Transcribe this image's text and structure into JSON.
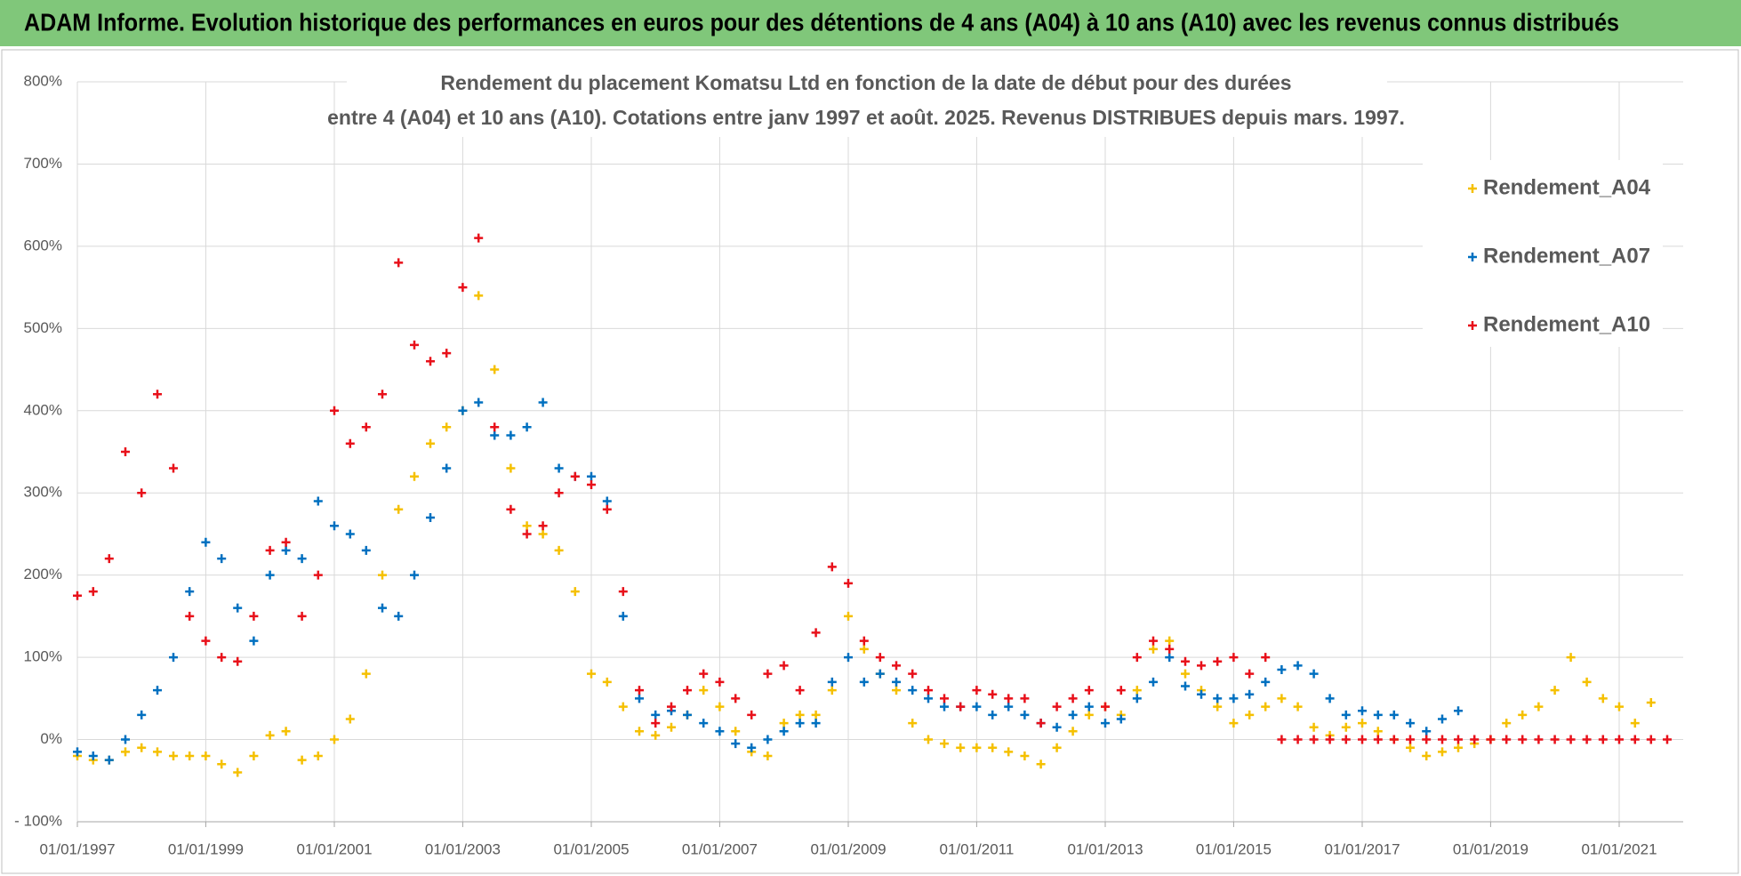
{
  "chart_data": {
    "type": "scatter",
    "title": "ADAM Informe. Evolution historique des performances en euros pour des détentions de 4 ans (A04) à 10 ans (A10) avec les revenus connus distribués",
    "subtitle": [
      "Rendement du placement Komatsu Ltd en fonction de la date de début pour des durées",
      "entre 4 (A04) et 10 ans (A10). Cotations entre janv 1997 et août. 2025. Revenus DISTRIBUES depuis mars. 1997."
    ],
    "x": [
      "01/01/1997",
      "01/04/1997",
      "01/07/1997",
      "01/10/1997",
      "01/01/1998",
      "01/04/1998",
      "01/07/1998",
      "01/10/1998",
      "01/01/1999",
      "01/04/1999",
      "01/07/1999",
      "01/10/1999",
      "01/01/2000",
      "01/04/2000",
      "01/07/2000",
      "01/10/2000",
      "01/01/2001",
      "01/04/2001",
      "01/07/2001",
      "01/10/2001",
      "01/01/2002",
      "01/04/2002",
      "01/07/2002",
      "01/10/2002",
      "01/01/2003",
      "01/04/2003",
      "01/07/2003",
      "01/10/2003",
      "01/01/2004",
      "01/04/2004",
      "01/07/2004",
      "01/10/2004",
      "01/01/2005",
      "01/04/2005",
      "01/07/2005",
      "01/10/2005",
      "01/01/2006",
      "01/04/2006",
      "01/07/2006",
      "01/10/2006",
      "01/01/2007",
      "01/04/2007",
      "01/07/2007",
      "01/10/2007",
      "01/01/2008",
      "01/04/2008",
      "01/07/2008",
      "01/10/2008",
      "01/01/2009",
      "01/04/2009",
      "01/07/2009",
      "01/10/2009",
      "01/01/2010",
      "01/04/2010",
      "01/07/2010",
      "01/10/2010",
      "01/01/2011",
      "01/04/2011",
      "01/07/2011",
      "01/10/2011",
      "01/01/2012",
      "01/04/2012",
      "01/07/2012",
      "01/10/2012",
      "01/01/2013",
      "01/04/2013",
      "01/07/2013",
      "01/10/2013",
      "01/01/2014",
      "01/04/2014",
      "01/07/2014",
      "01/10/2014",
      "01/01/2015",
      "01/04/2015",
      "01/07/2015",
      "01/10/2015",
      "01/01/2016",
      "01/04/2016",
      "01/07/2016",
      "01/10/2016",
      "01/01/2017",
      "01/04/2017",
      "01/07/2017",
      "01/10/2017",
      "01/01/2018",
      "01/04/2018",
      "01/07/2018",
      "01/10/2018",
      "01/01/2019",
      "01/04/2019",
      "01/07/2019",
      "01/10/2019",
      "01/01/2020",
      "01/04/2020",
      "01/07/2020",
      "01/10/2020",
      "01/01/2021",
      "01/04/2021",
      "01/07/2021",
      "01/10/2021"
    ],
    "series": [
      {
        "name": "Rendement_A04",
        "color": "#f5c000",
        "values": [
          -20,
          -25,
          -25,
          -15,
          -10,
          -15,
          -20,
          -20,
          -20,
          -30,
          -40,
          -20,
          5,
          10,
          -25,
          -20,
          0,
          25,
          80,
          200,
          280,
          320,
          360,
          380,
          400,
          540,
          450,
          330,
          260,
          250,
          230,
          180,
          80,
          70,
          40,
          10,
          5,
          15,
          30,
          60,
          40,
          10,
          -15,
          -20,
          20,
          30,
          30,
          60,
          150,
          110,
          80,
          60,
          20,
          0,
          -5,
          -10,
          -10,
          -10,
          -15,
          -20,
          -30,
          -10,
          10,
          30,
          40,
          30,
          60,
          110,
          120,
          80,
          60,
          40,
          20,
          30,
          40,
          50,
          40,
          15,
          5,
          15,
          20,
          10,
          0,
          -10,
          -20,
          -15,
          -10,
          -5,
          0,
          20,
          30,
          40,
          60,
          100,
          70,
          50,
          40,
          20,
          45,
          null
        ]
      },
      {
        "name": "Rendement_A07",
        "color": "#0070c0",
        "values": [
          -15,
          -20,
          -25,
          0,
          30,
          60,
          100,
          180,
          240,
          220,
          160,
          120,
          200,
          230,
          220,
          290,
          260,
          250,
          230,
          160,
          150,
          200,
          270,
          330,
          400,
          410,
          370,
          370,
          380,
          410,
          330,
          320,
          320,
          290,
          150,
          50,
          30,
          35,
          30,
          20,
          10,
          -5,
          -10,
          0,
          10,
          20,
          20,
          70,
          100,
          70,
          80,
          70,
          60,
          50,
          40,
          40,
          40,
          30,
          40,
          30,
          20,
          15,
          30,
          40,
          20,
          25,
          50,
          70,
          100,
          65,
          55,
          50,
          50,
          55,
          70,
          85,
          90,
          80,
          50,
          30,
          35,
          30,
          30,
          20,
          10,
          25,
          35,
          null,
          null,
          null,
          null,
          null,
          null,
          null,
          null,
          null,
          null,
          null,
          null,
          null
        ]
      },
      {
        "name": "Rendement_A10",
        "color": "#e8101a",
        "values": [
          175,
          180,
          220,
          350,
          300,
          420,
          330,
          150,
          120,
          100,
          95,
          150,
          230,
          240,
          150,
          200,
          400,
          360,
          380,
          420,
          580,
          480,
          460,
          470,
          550,
          610,
          380,
          280,
          250,
          260,
          300,
          320,
          310,
          280,
          180,
          60,
          20,
          40,
          60,
          80,
          70,
          50,
          30,
          80,
          90,
          60,
          130,
          210,
          190,
          120,
          100,
          90,
          80,
          60,
          50,
          40,
          60,
          55,
          50,
          50,
          20,
          40,
          50,
          60,
          40,
          60,
          100,
          120,
          110,
          95,
          90,
          95,
          100,
          80,
          100,
          0,
          0,
          0,
          0,
          0,
          0,
          0,
          0,
          0,
          0,
          0,
          0,
          0,
          0,
          0,
          0,
          0,
          0,
          0,
          0,
          0,
          0,
          0,
          0,
          0
        ]
      }
    ],
    "xlim": [
      "01/01/1997",
      "31/12/2021"
    ],
    "xticks": [
      "01/01/1997",
      "01/01/1999",
      "01/01/2001",
      "01/01/2003",
      "01/01/2005",
      "01/01/2007",
      "01/01/2009",
      "01/01/2011",
      "01/01/2013",
      "01/01/2015",
      "01/01/2017",
      "01/01/2019",
      "01/01/2021"
    ],
    "ylim": [
      -100,
      800
    ],
    "yticks": [
      {
        "value": -100,
        "label": "- 100%"
      },
      {
        "value": 0,
        "label": "0%"
      },
      {
        "value": 100,
        "label": "100%"
      },
      {
        "value": 200,
        "label": "200%"
      },
      {
        "value": 300,
        "label": "300%"
      },
      {
        "value": 400,
        "label": "400%"
      },
      {
        "value": 500,
        "label": "500%"
      },
      {
        "value": 600,
        "label": "600%"
      },
      {
        "value": 700,
        "label": "700%"
      },
      {
        "value": 800,
        "label": "800%"
      }
    ],
    "grid": true,
    "legend": "top-right"
  }
}
